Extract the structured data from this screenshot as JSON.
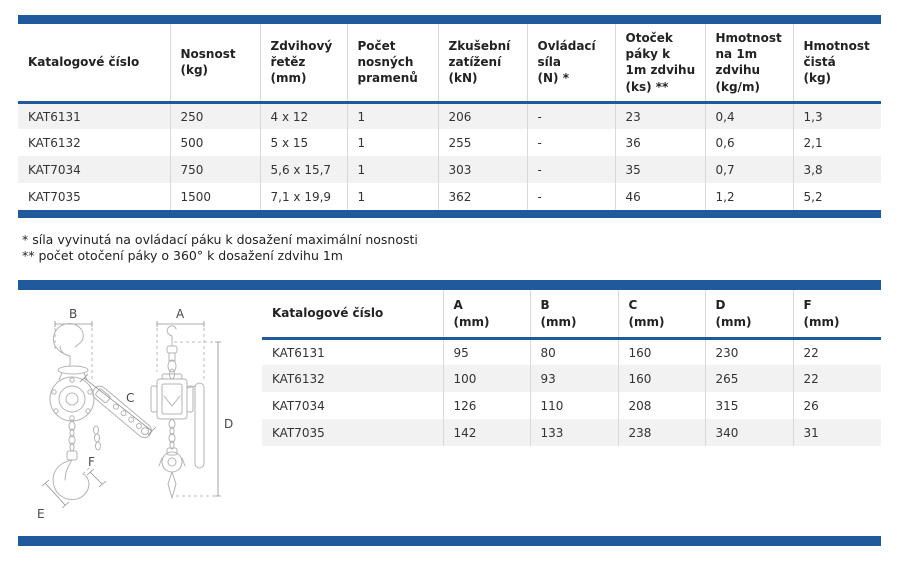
{
  "colors": {
    "accent": "#1f5b9c",
    "row_alt": "#f2f2f2",
    "grid_line": "#d9d9d9"
  },
  "table1": {
    "columns": [
      "Katalogové číslo",
      "Nosnost\n(kg)",
      "Zdvihový\nřetěz\n(mm)",
      "Počet\nnosných\npramenů",
      "Zkušební\nzatížení\n(kN)",
      "Ovládací\nsíla\n(N) *",
      "Otoček\npáky k\n1m zdvihu\n(ks) **",
      "Hmotnost\nna 1m\nzdvihu\n(kg/m)",
      "Hmotnost\nčistá\n(kg)"
    ],
    "rows": [
      [
        "KAT6131",
        "250",
        "4 x 12",
        "1",
        "206",
        "-",
        "23",
        "0,4",
        "1,3"
      ],
      [
        "KAT6132",
        "500",
        "5 x 15",
        "1",
        "255",
        "-",
        "36",
        "0,6",
        "2,1"
      ],
      [
        "KAT7034",
        "750",
        "5,6 x 15,7",
        "1",
        "303",
        "-",
        "35",
        "0,7",
        "3,8"
      ],
      [
        "KAT7035",
        "1500",
        "7,1 x 19,9",
        "1",
        "362",
        "-",
        "46",
        "1,2",
        "5,2"
      ]
    ]
  },
  "footnotes": [
    "* síla vyvinutá na ovládací páku k dosažení maximální nosnosti",
    "** počet otočení páky o 360° k dosažení zdvihu 1m"
  ],
  "table2": {
    "columns": [
      "Katalogové číslo",
      "A\n(mm)",
      "B\n(mm)",
      "C\n(mm)",
      "D\n(mm)",
      "F\n(mm)"
    ],
    "rows": [
      [
        "KAT6131",
        "95",
        "80",
        "160",
        "230",
        "22"
      ],
      [
        "KAT6132",
        "100",
        "93",
        "160",
        "265",
        "22"
      ],
      [
        "KAT7034",
        "126",
        "110",
        "208",
        "315",
        "26"
      ],
      [
        "KAT7035",
        "142",
        "133",
        "238",
        "340",
        "31"
      ]
    ]
  },
  "diagram": {
    "labels": {
      "a": "A",
      "b": "B",
      "c": "C",
      "d": "D",
      "e": "E",
      "f": "F"
    }
  }
}
